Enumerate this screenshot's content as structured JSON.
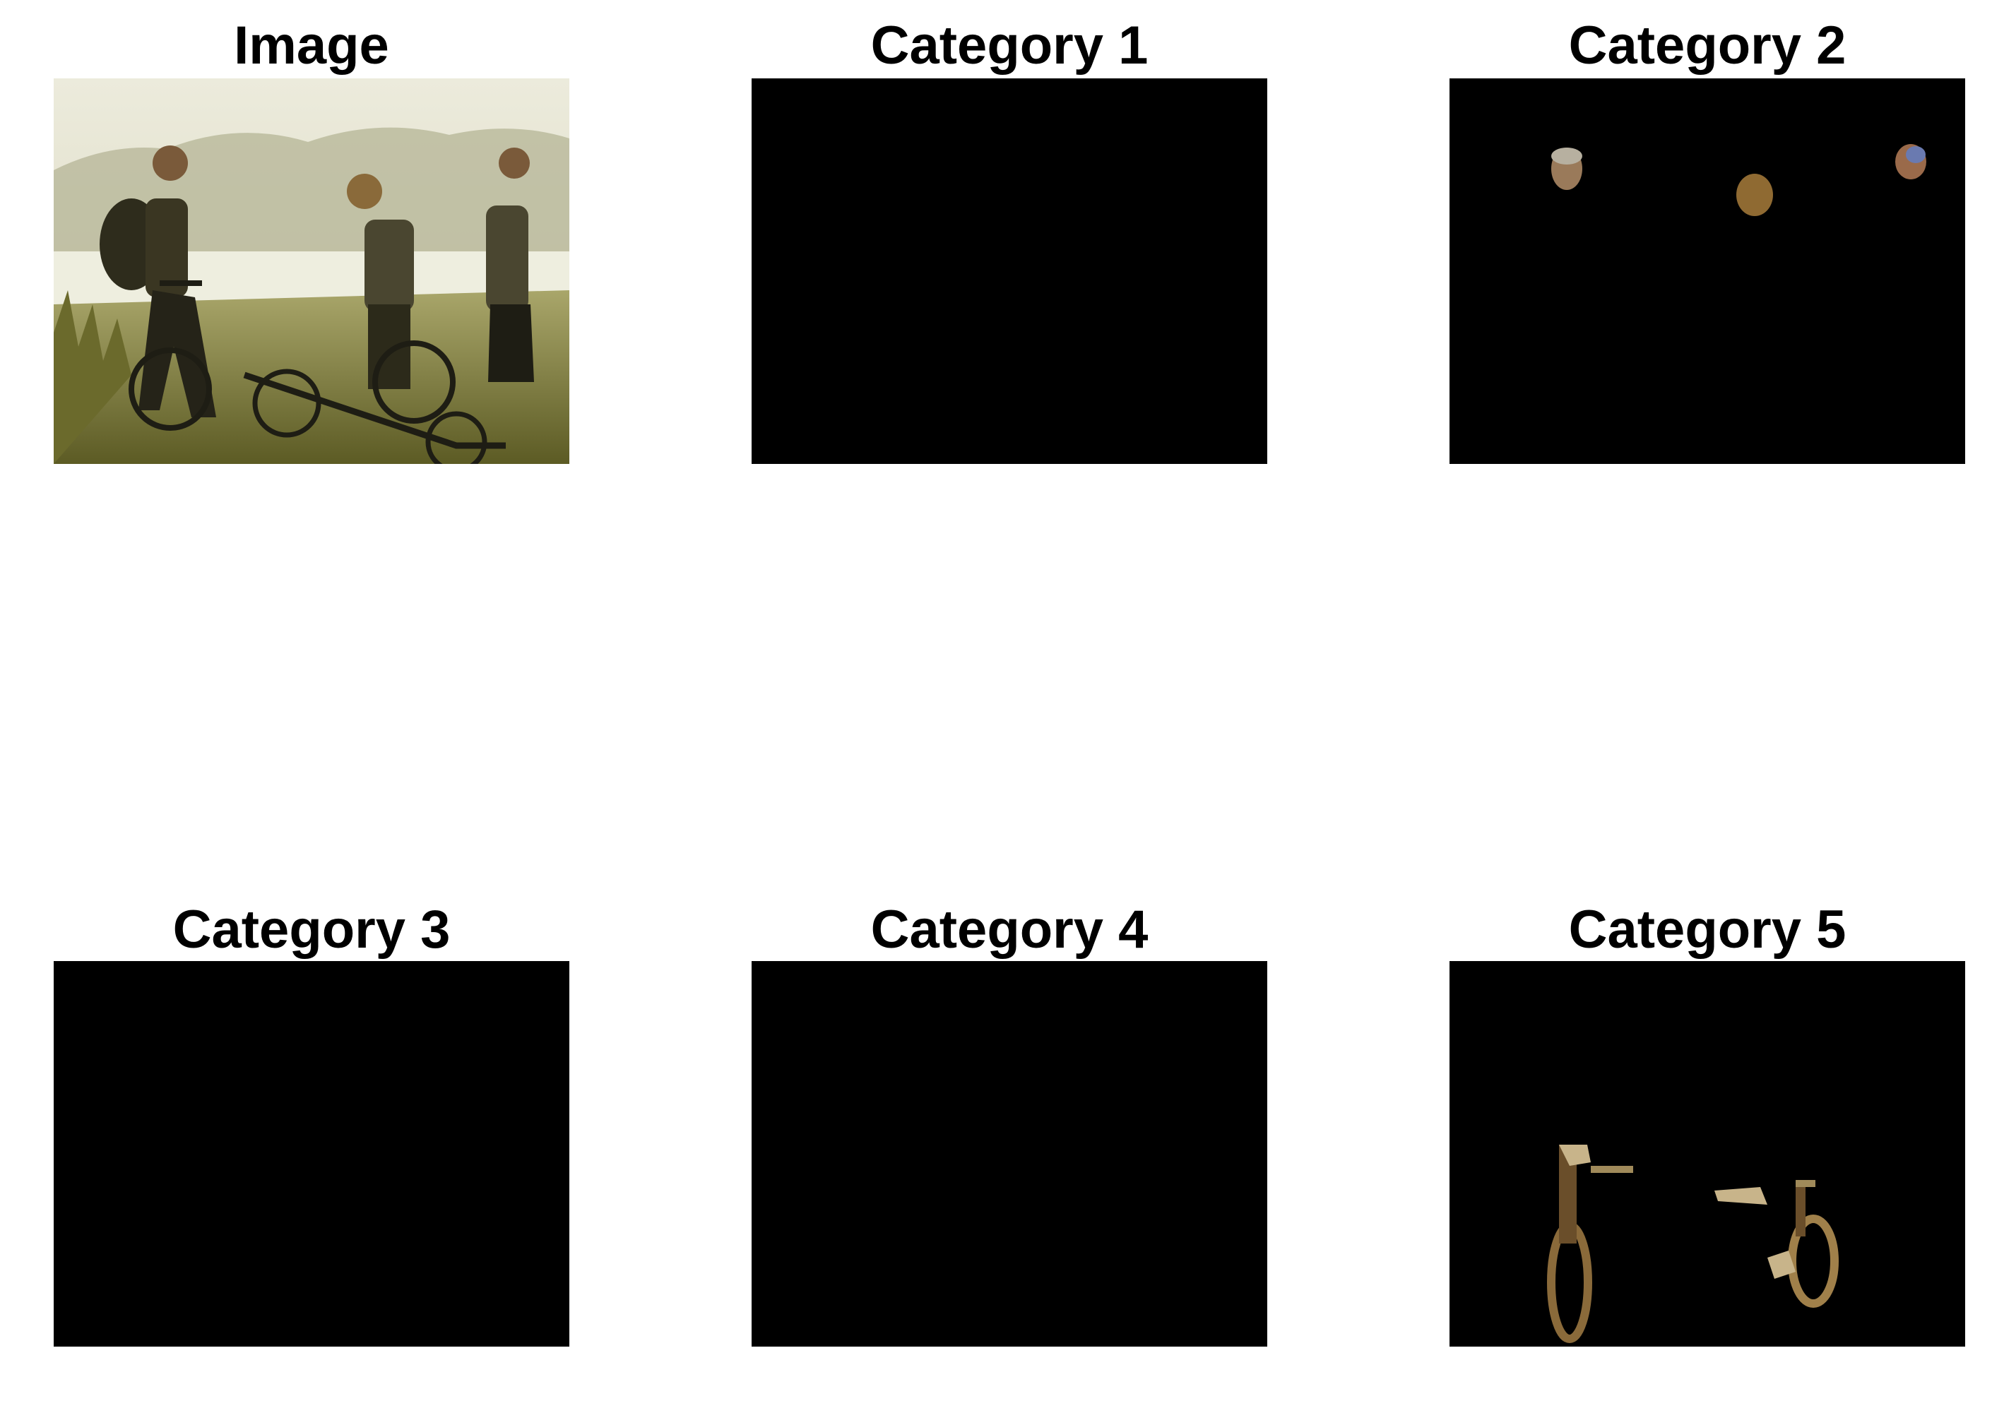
{
  "panels": [
    {
      "title": "Image",
      "content": "photo of three cyclists with bicycles in a grassy field near a lake at sunset"
    },
    {
      "title": "Category 1",
      "content": "empty mask"
    },
    {
      "title": "Category 2",
      "content": "segmented heads of three people"
    },
    {
      "title": "Category 3",
      "content": "empty mask"
    },
    {
      "title": "Category 4",
      "content": "empty mask"
    },
    {
      "title": "Category 5",
      "content": "segmented bicycles"
    }
  ],
  "colors": {
    "background": "#ffffff",
    "mask": "#000000",
    "sky": "#e8e6d4",
    "grass": "#7c7a3a",
    "silhouette": "#2c2a1a",
    "segment": "#a0763a"
  }
}
